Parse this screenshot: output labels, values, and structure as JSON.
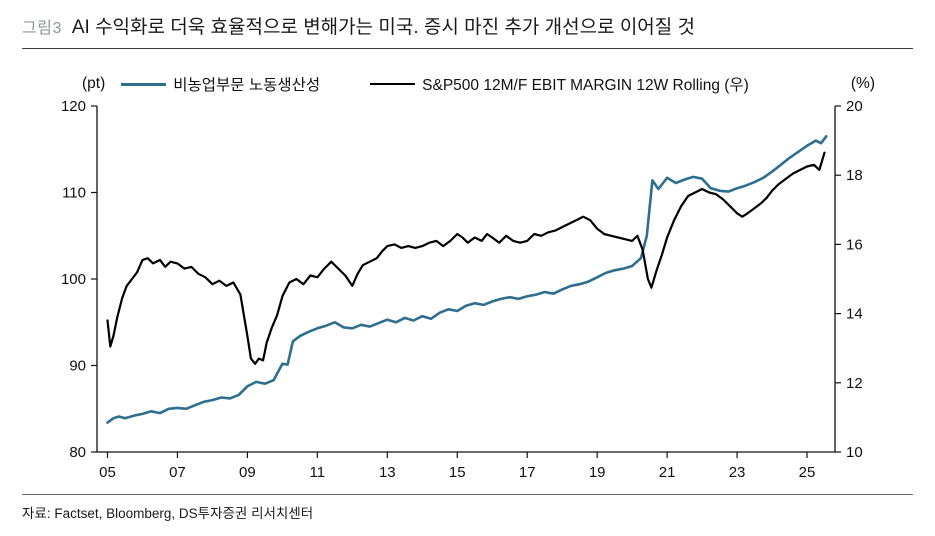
{
  "header": {
    "figure_label": "그림3",
    "title": "AI 수익화로 더욱 효율적으로 변해가는 미국. 증시 마진 추가 개선으로 이어질 것"
  },
  "footer": {
    "source": "자료: Factset, Bloomberg, DS투자증권 리서치센터"
  },
  "chart_data": {
    "type": "line",
    "title": "AI 수익화로 더욱 효율적으로 변해가는 미국. 증시 마진 추가 개선으로 이어질 것",
    "grid": false,
    "legend_position": "top",
    "x_domain": [
      2004.7,
      2025.8
    ],
    "x_ticks": [
      2005,
      2007,
      2009,
      2011,
      2013,
      2015,
      2017,
      2019,
      2021,
      2023,
      2025
    ],
    "x_tick_labels": [
      "05",
      "07",
      "09",
      "11",
      "13",
      "15",
      "17",
      "19",
      "21",
      "23",
      "25"
    ],
    "left_axis": {
      "unit": "(pt)",
      "range": [
        80,
        120
      ],
      "ticks": [
        80,
        90,
        100,
        110,
        120
      ]
    },
    "right_axis": {
      "unit": "(%)",
      "range": [
        10,
        20
      ],
      "ticks": [
        10,
        12,
        14,
        16,
        18,
        20
      ]
    },
    "axis_color": "#111111",
    "series": [
      {
        "name": "비농업부문 노동생산성",
        "axis": "left",
        "color": "#2e6e8e",
        "width": 2.6,
        "points": [
          [
            2005,
            83.4
          ],
          [
            2005.17,
            83.9
          ],
          [
            2005.33,
            84.1
          ],
          [
            2005.5,
            83.9
          ],
          [
            2005.75,
            84.2
          ],
          [
            2006,
            84.4
          ],
          [
            2006.25,
            84.7
          ],
          [
            2006.5,
            84.5
          ],
          [
            2006.75,
            85
          ],
          [
            2007,
            85.1
          ],
          [
            2007.25,
            85
          ],
          [
            2007.5,
            85.4
          ],
          [
            2007.75,
            85.8
          ],
          [
            2008,
            86
          ],
          [
            2008.25,
            86.3
          ],
          [
            2008.5,
            86.2
          ],
          [
            2008.75,
            86.6
          ],
          [
            2009,
            87.6
          ],
          [
            2009.25,
            88.1
          ],
          [
            2009.5,
            87.9
          ],
          [
            2009.75,
            88.3
          ],
          [
            2010,
            90.2
          ],
          [
            2010.15,
            90.1
          ],
          [
            2010.3,
            92.8
          ],
          [
            2010.5,
            93.4
          ],
          [
            2010.75,
            93.9
          ],
          [
            2011,
            94.3
          ],
          [
            2011.25,
            94.6
          ],
          [
            2011.5,
            95
          ],
          [
            2011.75,
            94.4
          ],
          [
            2012,
            94.3
          ],
          [
            2012.25,
            94.7
          ],
          [
            2012.5,
            94.5
          ],
          [
            2012.75,
            94.9
          ],
          [
            2013,
            95.3
          ],
          [
            2013.25,
            95
          ],
          [
            2013.5,
            95.5
          ],
          [
            2013.75,
            95.2
          ],
          [
            2014,
            95.7
          ],
          [
            2014.25,
            95.4
          ],
          [
            2014.5,
            96.1
          ],
          [
            2014.75,
            96.5
          ],
          [
            2015,
            96.3
          ],
          [
            2015.25,
            96.9
          ],
          [
            2015.5,
            97.2
          ],
          [
            2015.75,
            97
          ],
          [
            2016,
            97.4
          ],
          [
            2016.25,
            97.7
          ],
          [
            2016.5,
            97.9
          ],
          [
            2016.75,
            97.7
          ],
          [
            2017,
            98
          ],
          [
            2017.25,
            98.2
          ],
          [
            2017.5,
            98.5
          ],
          [
            2017.75,
            98.3
          ],
          [
            2018,
            98.8
          ],
          [
            2018.25,
            99.2
          ],
          [
            2018.5,
            99.4
          ],
          [
            2018.75,
            99.7
          ],
          [
            2019,
            100.2
          ],
          [
            2019.25,
            100.7
          ],
          [
            2019.5,
            101
          ],
          [
            2019.75,
            101.2
          ],
          [
            2020,
            101.5
          ],
          [
            2020.25,
            102.4
          ],
          [
            2020.42,
            105
          ],
          [
            2020.58,
            111.4
          ],
          [
            2020.75,
            110.4
          ],
          [
            2021,
            111.7
          ],
          [
            2021.25,
            111.1
          ],
          [
            2021.5,
            111.5
          ],
          [
            2021.75,
            111.8
          ],
          [
            2022,
            111.6
          ],
          [
            2022.25,
            110.5
          ],
          [
            2022.5,
            110.2
          ],
          [
            2022.75,
            110.1
          ],
          [
            2023,
            110.5
          ],
          [
            2023.25,
            110.8
          ],
          [
            2023.5,
            111.2
          ],
          [
            2023.75,
            111.7
          ],
          [
            2024,
            112.4
          ],
          [
            2024.25,
            113.2
          ],
          [
            2024.5,
            114
          ],
          [
            2024.75,
            114.7
          ],
          [
            2025,
            115.4
          ],
          [
            2025.25,
            116
          ],
          [
            2025.4,
            115.7
          ],
          [
            2025.55,
            116.5
          ]
        ]
      },
      {
        "name": "S&P500 12M/F EBIT MARGIN 12W Rolling (우)",
        "axis": "right",
        "color": "#000000",
        "width": 2.2,
        "points": [
          [
            2005,
            13.8
          ],
          [
            2005.08,
            13.05
          ],
          [
            2005.17,
            13.35
          ],
          [
            2005.28,
            13.9
          ],
          [
            2005.42,
            14.45
          ],
          [
            2005.55,
            14.8
          ],
          [
            2005.7,
            15
          ],
          [
            2005.85,
            15.2
          ],
          [
            2006,
            15.55
          ],
          [
            2006.15,
            15.6
          ],
          [
            2006.3,
            15.45
          ],
          [
            2006.5,
            15.55
          ],
          [
            2006.65,
            15.35
          ],
          [
            2006.8,
            15.5
          ],
          [
            2007,
            15.45
          ],
          [
            2007.2,
            15.3
          ],
          [
            2007.4,
            15.35
          ],
          [
            2007.6,
            15.15
          ],
          [
            2007.8,
            15.05
          ],
          [
            2008,
            14.85
          ],
          [
            2008.2,
            14.95
          ],
          [
            2008.4,
            14.8
          ],
          [
            2008.6,
            14.9
          ],
          [
            2008.8,
            14.55
          ],
          [
            2009,
            13.35
          ],
          [
            2009.1,
            12.7
          ],
          [
            2009.22,
            12.55
          ],
          [
            2009.33,
            12.7
          ],
          [
            2009.45,
            12.65
          ],
          [
            2009.55,
            13.15
          ],
          [
            2009.7,
            13.6
          ],
          [
            2009.85,
            13.95
          ],
          [
            2010,
            14.5
          ],
          [
            2010.2,
            14.9
          ],
          [
            2010.4,
            15
          ],
          [
            2010.6,
            14.85
          ],
          [
            2010.8,
            15.1
          ],
          [
            2011,
            15.05
          ],
          [
            2011.2,
            15.3
          ],
          [
            2011.4,
            15.5
          ],
          [
            2011.6,
            15.3
          ],
          [
            2011.8,
            15.1
          ],
          [
            2012,
            14.8
          ],
          [
            2012.15,
            15.15
          ],
          [
            2012.3,
            15.4
          ],
          [
            2012.5,
            15.5
          ],
          [
            2012.7,
            15.6
          ],
          [
            2012.85,
            15.8
          ],
          [
            2013,
            15.95
          ],
          [
            2013.2,
            16
          ],
          [
            2013.4,
            15.9
          ],
          [
            2013.6,
            15.95
          ],
          [
            2013.8,
            15.9
          ],
          [
            2014,
            15.95
          ],
          [
            2014.2,
            16.05
          ],
          [
            2014.4,
            16.1
          ],
          [
            2014.6,
            15.95
          ],
          [
            2014.8,
            16.1
          ],
          [
            2015,
            16.3
          ],
          [
            2015.15,
            16.2
          ],
          [
            2015.3,
            16.05
          ],
          [
            2015.5,
            16.2
          ],
          [
            2015.7,
            16.1
          ],
          [
            2015.85,
            16.3
          ],
          [
            2016,
            16.2
          ],
          [
            2016.2,
            16.05
          ],
          [
            2016.4,
            16.25
          ],
          [
            2016.6,
            16.1
          ],
          [
            2016.8,
            16.05
          ],
          [
            2017,
            16.1
          ],
          [
            2017.2,
            16.3
          ],
          [
            2017.4,
            16.25
          ],
          [
            2017.6,
            16.35
          ],
          [
            2017.8,
            16.4
          ],
          [
            2018,
            16.5
          ],
          [
            2018.2,
            16.6
          ],
          [
            2018.4,
            16.7
          ],
          [
            2018.6,
            16.8
          ],
          [
            2018.8,
            16.7
          ],
          [
            2019,
            16.45
          ],
          [
            2019.2,
            16.3
          ],
          [
            2019.4,
            16.25
          ],
          [
            2019.6,
            16.2
          ],
          [
            2019.8,
            16.15
          ],
          [
            2020,
            16.1
          ],
          [
            2020.15,
            16.25
          ],
          [
            2020.3,
            15.85
          ],
          [
            2020.45,
            15
          ],
          [
            2020.55,
            14.75
          ],
          [
            2020.7,
            15.25
          ],
          [
            2020.85,
            15.7
          ],
          [
            2021,
            16.2
          ],
          [
            2021.2,
            16.7
          ],
          [
            2021.4,
            17.1
          ],
          [
            2021.6,
            17.4
          ],
          [
            2021.8,
            17.5
          ],
          [
            2022,
            17.6
          ],
          [
            2022.2,
            17.5
          ],
          [
            2022.4,
            17.45
          ],
          [
            2022.6,
            17.3
          ],
          [
            2022.8,
            17.1
          ],
          [
            2023,
            16.9
          ],
          [
            2023.15,
            16.8
          ],
          [
            2023.3,
            16.9
          ],
          [
            2023.5,
            17.05
          ],
          [
            2023.7,
            17.2
          ],
          [
            2023.85,
            17.35
          ],
          [
            2024,
            17.55
          ],
          [
            2024.2,
            17.75
          ],
          [
            2024.4,
            17.9
          ],
          [
            2024.6,
            18.05
          ],
          [
            2024.8,
            18.15
          ],
          [
            2025,
            18.25
          ],
          [
            2025.2,
            18.3
          ],
          [
            2025.35,
            18.15
          ],
          [
            2025.5,
            18.65
          ]
        ]
      }
    ]
  }
}
